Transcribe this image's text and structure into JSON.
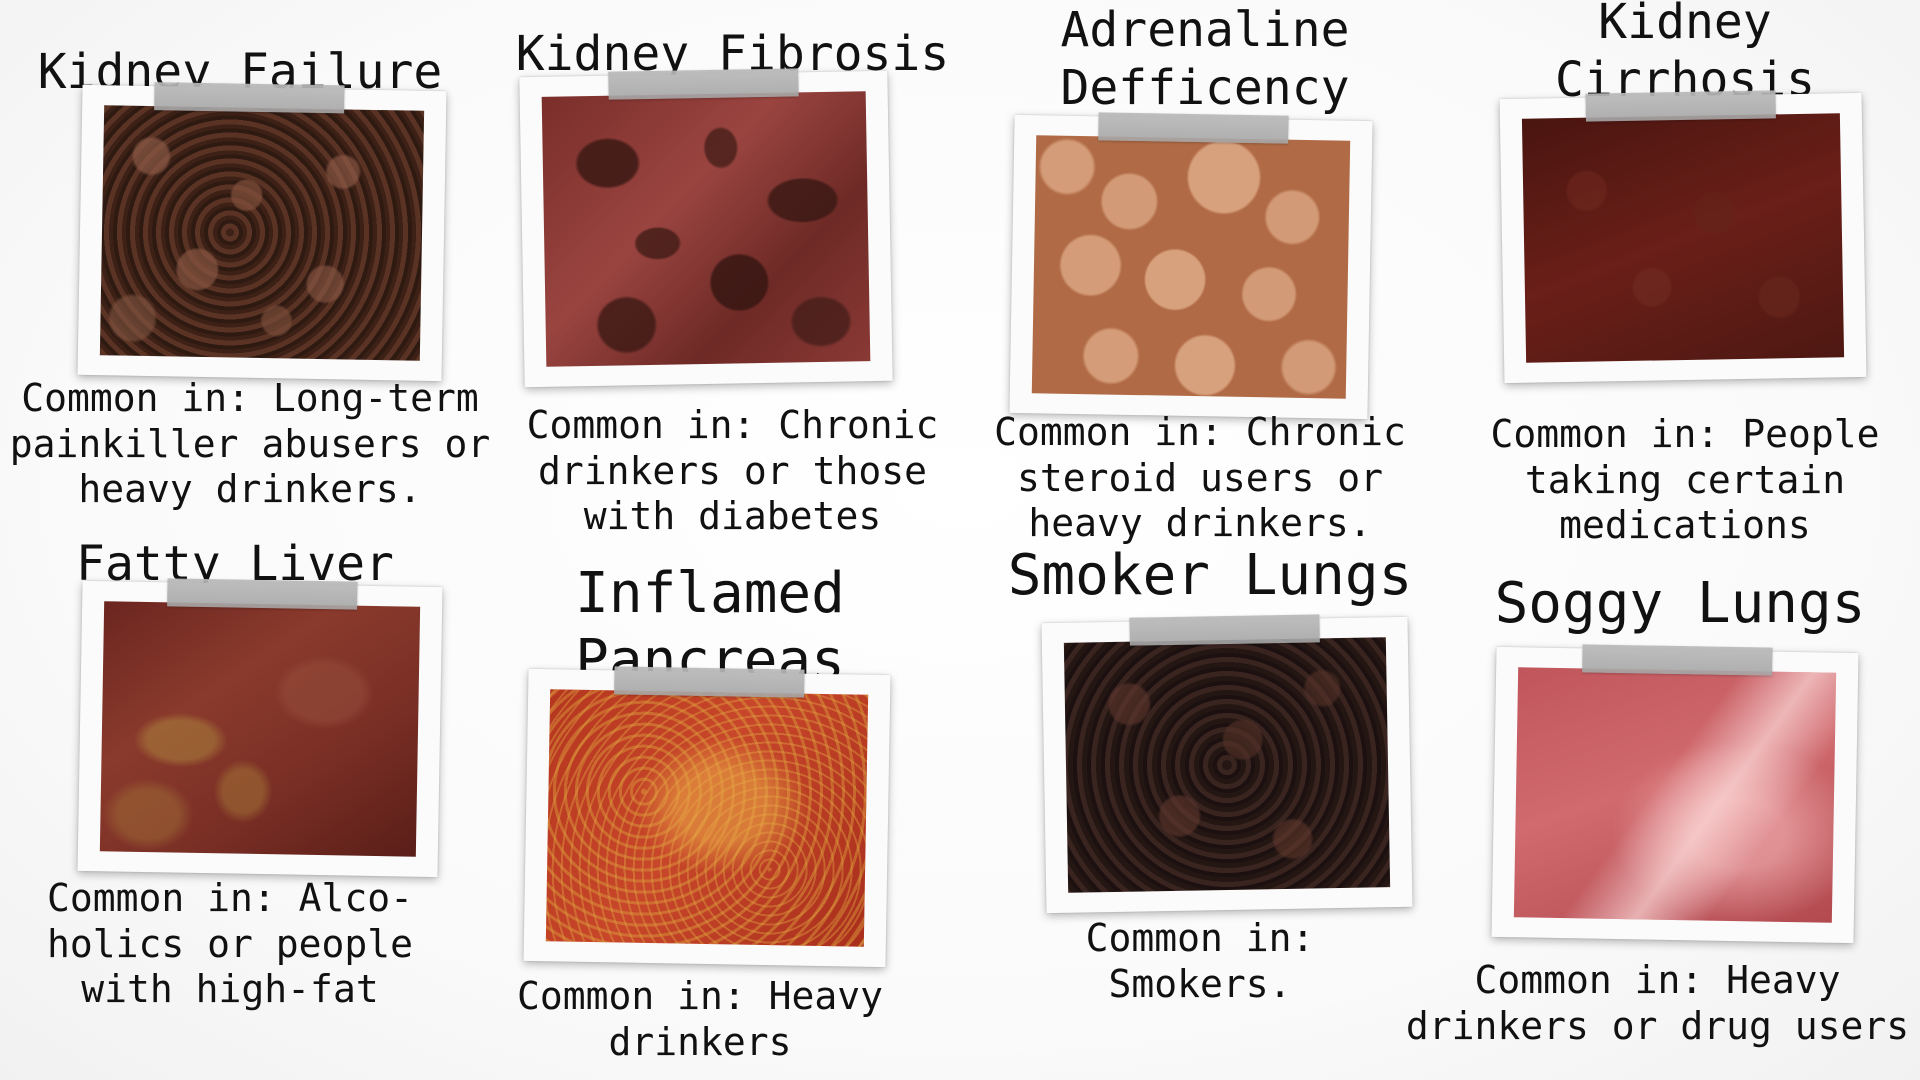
{
  "cards": [
    {
      "key": "kidney_failure",
      "title": "Kidney Failure",
      "caption": "Common in: Long-term\npainkiller abusers or\nheavy drinkers.",
      "texture": "brown lumpy tissue"
    },
    {
      "key": "kidney_fibrosis",
      "title": "Kidney Fibrosis",
      "caption": "Common in: Chronic\ndrinkers or those\nwith diabetes",
      "texture": "red tissue with dark patches"
    },
    {
      "key": "adrenaline",
      "title": "Adrenaline\nDefficency",
      "caption": "Common in: Chronic\nsteroid users or\nheavy drinkers.",
      "texture": "tan tissue with round spots"
    },
    {
      "key": "kidney_cirrhosis",
      "title": "Kidney\nCirrhosis",
      "caption": "Common in: People\ntaking certain\nmedications",
      "texture": "dark red tissue"
    },
    {
      "key": "fatty_liver",
      "title": "Fatty Liver",
      "caption": "Common in: Alco-\nholics or people\nwith high-fat",
      "texture": "red tissue with yellow patches"
    },
    {
      "key": "pancreas",
      "title": "Inflamed\nPancreas",
      "caption": "Common in: Heavy\ndrinkers",
      "texture": "red tissue with yellow speckles"
    },
    {
      "key": "smoker_lungs",
      "title": "Smoker Lungs",
      "caption": "Common in:\nSmokers.",
      "texture": "black lumpy tissue"
    },
    {
      "key": "soggy_lungs",
      "title": "Soggy Lungs",
      "caption": "Common in: Heavy\ndrinkers or drug users",
      "texture": "glossy pink tissue"
    }
  ]
}
